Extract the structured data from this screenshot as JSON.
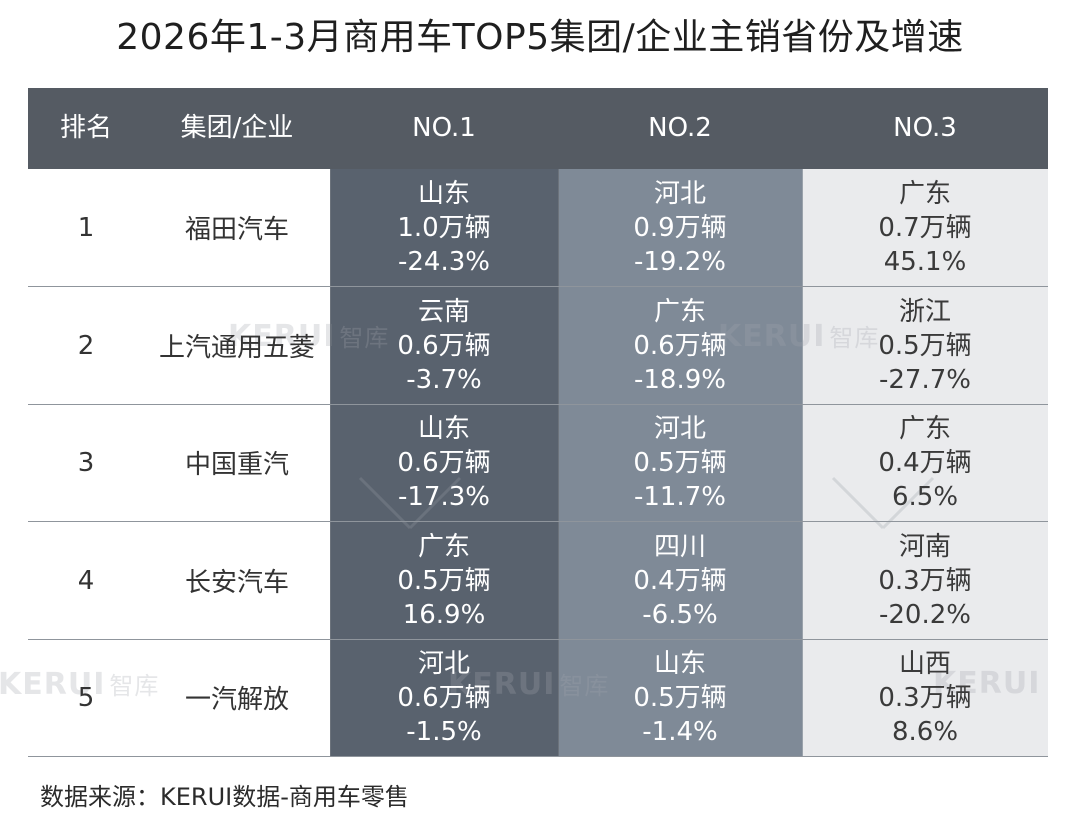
{
  "title": "2026年1-3月商用车TOP5集团/企业主销省份及增速",
  "header": {
    "rank": "排名",
    "company": "集团/企业",
    "no1": "NO.1",
    "no2": "NO.2",
    "no3": "NO.3"
  },
  "colors": {
    "header_bg": "#555b63",
    "no1_bg": "#59626e",
    "no2_bg": "#7f8a97",
    "no3_bg": "#eaebed"
  },
  "rows": [
    {
      "rank": "1",
      "company": "福田汽车",
      "no1": {
        "province": "山东",
        "volume": "1.0万辆",
        "growth": "-24.3%"
      },
      "no2": {
        "province": "河北",
        "volume": "0.9万辆",
        "growth": "-19.2%"
      },
      "no3": {
        "province": "广东",
        "volume": "0.7万辆",
        "growth": "45.1%"
      }
    },
    {
      "rank": "2",
      "company": "上汽通用五菱",
      "no1": {
        "province": "云南",
        "volume": "0.6万辆",
        "growth": "-3.7%"
      },
      "no2": {
        "province": "广东",
        "volume": "0.6万辆",
        "growth": "-18.9%"
      },
      "no3": {
        "province": "浙江",
        "volume": "0.5万辆",
        "growth": "-27.7%"
      }
    },
    {
      "rank": "3",
      "company": "中国重汽",
      "no1": {
        "province": "山东",
        "volume": "0.6万辆",
        "growth": "-17.3%"
      },
      "no2": {
        "province": "河北",
        "volume": "0.5万辆",
        "growth": "-11.7%"
      },
      "no3": {
        "province": "广东",
        "volume": "0.4万辆",
        "growth": "6.5%"
      }
    },
    {
      "rank": "4",
      "company": "长安汽车",
      "no1": {
        "province": "广东",
        "volume": "0.5万辆",
        "growth": "16.9%"
      },
      "no2": {
        "province": "四川",
        "volume": "0.4万辆",
        "growth": "-6.5%"
      },
      "no3": {
        "province": "河南",
        "volume": "0.3万辆",
        "growth": "-20.2%"
      }
    },
    {
      "rank": "5",
      "company": "一汽解放",
      "no1": {
        "province": "河北",
        "volume": "0.6万辆",
        "growth": "-1.5%"
      },
      "no2": {
        "province": "山东",
        "volume": "0.5万辆",
        "growth": "-1.4%"
      },
      "no3": {
        "province": "山西",
        "volume": "0.3万辆",
        "growth": "8.6%"
      }
    }
  ],
  "watermark": {
    "brand": "KERUI",
    "suffix": "智库"
  },
  "source": "数据来源：KERUI数据-商用车零售"
}
